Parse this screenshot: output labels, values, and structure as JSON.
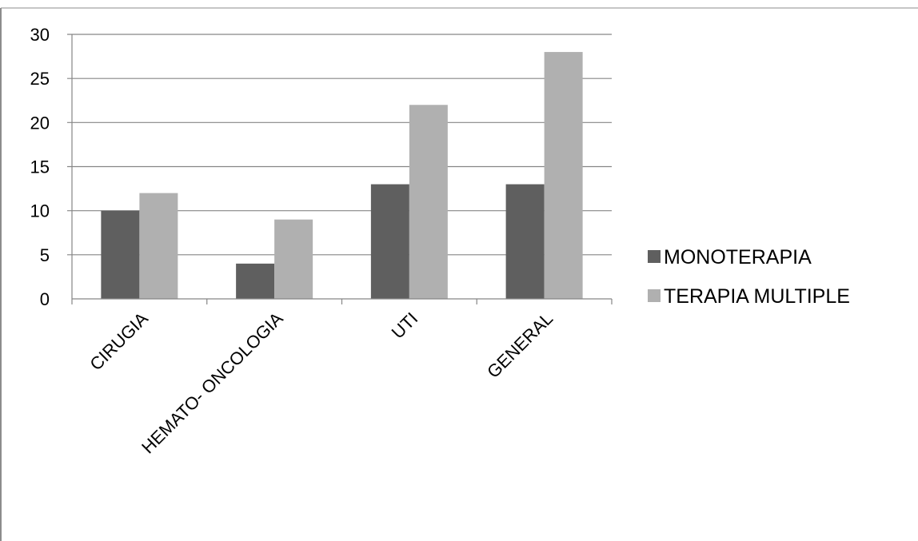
{
  "chart_data": {
    "type": "bar",
    "title": "",
    "xlabel": "",
    "ylabel": "",
    "categories": [
      "CIRUGIA",
      "HEMATO- ONCOLOGIA",
      "UTI",
      "GENERAL"
    ],
    "series": [
      {
        "name": "MONOTERAPIA",
        "values": [
          10,
          4,
          13,
          13
        ],
        "color": "#5f5f5f"
      },
      {
        "name": "TERAPIA MULTIPLE",
        "values": [
          12,
          9,
          22,
          28
        ],
        "color": "#b0b0b0"
      }
    ],
    "ylim": [
      0,
      30
    ],
    "yticks": [
      "0",
      "5",
      "10",
      "15",
      "20",
      "25",
      "30"
    ],
    "grid": true,
    "legend_position": "right",
    "gridline_color": "#868686",
    "axis_color": "#868686"
  }
}
